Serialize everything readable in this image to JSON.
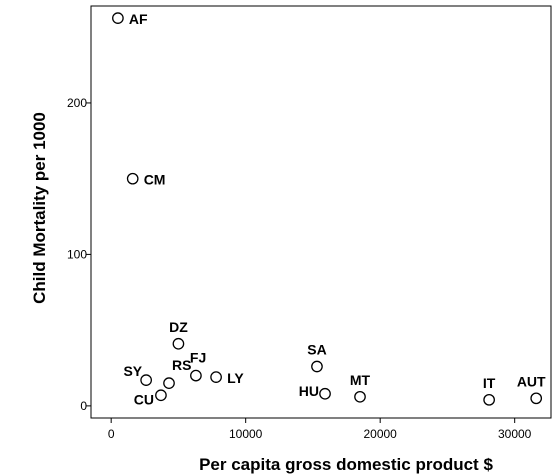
{
  "chart_data": {
    "type": "scatter",
    "title": "",
    "xlabel": "Per capita gross domestic product $",
    "ylabel": "Child Mortality per 1000",
    "xlim": [
      -1500,
      32700
    ],
    "ylim": [
      -8,
      264
    ],
    "xticks": [
      0,
      10000,
      20000,
      30000
    ],
    "yticks": [
      0,
      100,
      200
    ],
    "grid": false,
    "legend": "none",
    "points": [
      {
        "label": "AF",
        "x": 500,
        "y": 256
      },
      {
        "label": "CM",
        "x": 1600,
        "y": 150
      },
      {
        "label": "DZ",
        "x": 5000,
        "y": 41
      },
      {
        "label": "SY",
        "x": 2600,
        "y": 17
      },
      {
        "label": "RS",
        "x": 4300,
        "y": 15
      },
      {
        "label": "CU",
        "x": 3700,
        "y": 7
      },
      {
        "label": "FJ",
        "x": 6300,
        "y": 20
      },
      {
        "label": "LY",
        "x": 7800,
        "y": 19
      },
      {
        "label": "SA",
        "x": 15300,
        "y": 26
      },
      {
        "label": "HU",
        "x": 15900,
        "y": 8
      },
      {
        "label": "MT",
        "x": 18500,
        "y": 6
      },
      {
        "label": "IT",
        "x": 28100,
        "y": 4
      },
      {
        "label": "AUT",
        "x": 31600,
        "y": 5
      }
    ]
  }
}
